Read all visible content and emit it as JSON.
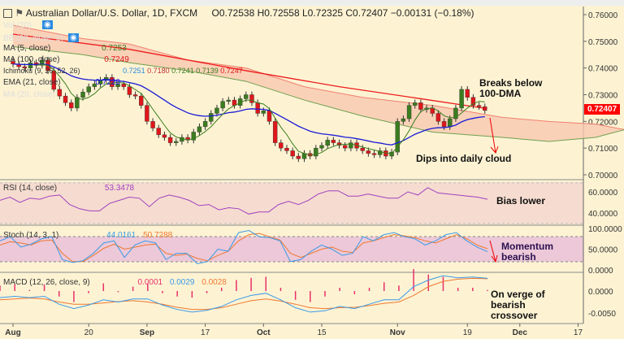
{
  "header": {
    "title": "Australian Dollar/U.S. Dollar, 1D, FXCM",
    "open": "O0.72538",
    "high": "H0.72558",
    "low": "L0.72325",
    "close": "C0.72407",
    "change": "−0.00131 (−0.18%)"
  },
  "legends": {
    "vol": "Vol (20)",
    "bb": "BB (20, close, 2)",
    "ma5": {
      "label": "MA (5, close)",
      "value": "0.7253"
    },
    "ma100": {
      "label": "MA (100, close)",
      "value": "0.7249"
    },
    "ichimoku": {
      "label": "Ichimoku (9, 26, 52, 26)",
      "values": [
        "0.7251",
        "0.7180",
        "0.7241",
        "0.7139",
        "0.7247"
      ]
    },
    "ema21": {
      "label": "EMA (21, close)",
      "value": "0.7220"
    },
    "ma20": "MA (20, close)",
    "rsi": {
      "label": "RSI (14, close)",
      "value": "53.3478"
    },
    "stoch": {
      "label": "Stoch (14, 3, 1)",
      "k": "44.0161",
      "d": "50.7288"
    },
    "macd": {
      "label": "MACD (12, 26, close, 9)",
      "hist": "0.0001",
      "macd": "0.0029",
      "signal": "0.0028"
    }
  },
  "annotations": {
    "breaks": "Breaks below 100-DMA",
    "dips": "Dips into daily cloud",
    "bias": "Bias lower",
    "momentum": "Momentum bearish",
    "verge": "On verge of bearish crossover"
  },
  "price_badge": "0.72407",
  "colors": {
    "up": "#3a7d1e",
    "down": "#e0161b",
    "ema": "#1a1ad8",
    "ma100": "#ee1c1c",
    "cloud": "#f8c8b0",
    "rsi": "#a040c0",
    "stochK": "#3a9ae8",
    "stochD": "#f07830",
    "macdHist": "#e8306a"
  },
  "chart_data": {
    "type": "candlestick",
    "price_axis": {
      "ticks": [
        "0.76000",
        "0.75000",
        "0.74000",
        "0.73000",
        "0.72000",
        "0.71000",
        "0.70000"
      ],
      "range": [
        0.7,
        0.76
      ]
    },
    "x_ticks": [
      {
        "label": "Aug",
        "i": 0
      },
      {
        "label": "20",
        "i": 13
      },
      {
        "label": "Sep",
        "i": 23
      },
      {
        "label": "17",
        "i": 33
      },
      {
        "label": "Oct",
        "i": 43
      },
      {
        "label": "15",
        "i": 53
      },
      {
        "label": "Nov",
        "i": 66
      },
      {
        "label": "19",
        "i": 78
      },
      {
        "label": "Dec",
        "i": 87
      },
      {
        "label": "17",
        "i": 97
      }
    ],
    "closes": [
      0.7415,
      0.7405,
      0.74,
      0.742,
      0.741,
      0.743,
      0.739,
      0.732,
      0.7295,
      0.727,
      0.725,
      0.729,
      0.731,
      0.733,
      0.734,
      0.7355,
      0.7365,
      0.733,
      0.734,
      0.733,
      0.73,
      0.7295,
      0.726,
      0.72,
      0.7175,
      0.715,
      0.714,
      0.712,
      0.7125,
      0.714,
      0.713,
      0.716,
      0.718,
      0.72,
      0.723,
      0.725,
      0.7275,
      0.728,
      0.726,
      0.7285,
      0.73,
      0.727,
      0.723,
      0.724,
      0.72,
      0.712,
      0.71,
      0.709,
      0.707,
      0.706,
      0.708,
      0.707,
      0.71,
      0.711,
      0.713,
      0.712,
      0.711,
      0.71,
      0.712,
      0.71,
      0.709,
      0.708,
      0.7075,
      0.709,
      0.707,
      0.7085,
      0.72,
      0.721,
      0.726,
      0.727,
      0.7245,
      0.725,
      0.723,
      0.72,
      0.718,
      0.721,
      0.725,
      0.732,
      0.729,
      0.726,
      0.7255,
      0.7241
    ],
    "ma100": [
      [
        0,
        0.7527
      ],
      [
        20,
        0.747
      ],
      [
        40,
        0.739
      ],
      [
        56,
        0.733
      ],
      [
        70,
        0.7285
      ],
      [
        81,
        0.7249
      ]
    ],
    "cloud_a": [
      [
        0,
        0.756
      ],
      [
        12,
        0.751
      ],
      [
        20,
        0.749
      ],
      [
        30,
        0.743
      ],
      [
        40,
        0.74
      ],
      [
        50,
        0.733
      ],
      [
        60,
        0.729
      ],
      [
        72,
        0.726
      ],
      [
        84,
        0.7215
      ],
      [
        92,
        0.72
      ],
      [
        100,
        0.719
      ],
      [
        106,
        0.7165
      ]
    ],
    "cloud_b": [
      [
        0,
        0.748
      ],
      [
        12,
        0.745
      ],
      [
        20,
        0.742
      ],
      [
        30,
        0.739
      ],
      [
        40,
        0.735
      ],
      [
        50,
        0.728
      ],
      [
        60,
        0.722
      ],
      [
        72,
        0.716
      ],
      [
        84,
        0.714
      ],
      [
        92,
        0.7125
      ],
      [
        100,
        0.714
      ],
      [
        106,
        0.7175
      ]
    ],
    "rsi": {
      "ticks": [
        "60.0000",
        "40.0000"
      ],
      "values": [
        52,
        55,
        50,
        54,
        53,
        56,
        57,
        48,
        44,
        42,
        42,
        49,
        52,
        55,
        54,
        46,
        54,
        57,
        55,
        52,
        47,
        48,
        43,
        45,
        44,
        39,
        41,
        41,
        48,
        51,
        48,
        52,
        58,
        61,
        61,
        56,
        56,
        58,
        56,
        54,
        54,
        60,
        57,
        64,
        59,
        58,
        57,
        56,
        55,
        53
      ]
    },
    "stoch": {
      "ticks": [
        "100.0000",
        "50.0000",
        "0.0000"
      ],
      "k": [
        70,
        80,
        55,
        62,
        75,
        80,
        25,
        18,
        22,
        40,
        65,
        70,
        30,
        60,
        70,
        65,
        25,
        40,
        40,
        15,
        20,
        50,
        45,
        90,
        95,
        80,
        78,
        70,
        20,
        25,
        45,
        60,
        50,
        35,
        40,
        80,
        70,
        85,
        90,
        80,
        75,
        60,
        70,
        85,
        90,
        70,
        55,
        44
      ],
      "d": [
        60,
        68,
        65,
        60,
        70,
        72,
        40,
        20,
        20,
        35,
        52,
        62,
        50,
        55,
        60,
        62,
        40,
        35,
        38,
        28,
        22,
        35,
        45,
        70,
        85,
        88,
        80,
        72,
        40,
        30,
        40,
        50,
        55,
        45,
        42,
        65,
        70,
        78,
        85,
        82,
        78,
        70,
        65,
        75,
        85,
        75,
        60,
        51
      ]
    },
    "macd": {
      "ticks": [
        "0.0000",
        "-0.0050"
      ],
      "macd": [
        -0.0015,
        -0.0012,
        -0.0015,
        -0.0012,
        -0.003,
        -0.004,
        -0.0032,
        -0.002,
        -0.0025,
        -0.0018,
        -0.0018,
        -0.0032,
        -0.0042,
        -0.0048,
        -0.0044,
        -0.0035,
        -0.002,
        -0.001,
        -0.0005,
        -0.002,
        -0.0038,
        -0.0048,
        -0.0045,
        -0.0035,
        -0.004,
        -0.003,
        -0.002,
        -0.002,
        0.001,
        0.0025,
        0.0035,
        0.003,
        0.0032,
        0.0029
      ],
      "signal": [
        -0.002,
        -0.0018,
        -0.0016,
        -0.0018,
        -0.0025,
        -0.003,
        -0.003,
        -0.0027,
        -0.0024,
        -0.0022,
        -0.0025,
        -0.003,
        -0.0037,
        -0.0042,
        -0.0042,
        -0.0038,
        -0.003,
        -0.0022,
        -0.0018,
        -0.0023,
        -0.003,
        -0.0038,
        -0.004,
        -0.0038,
        -0.0037,
        -0.0033,
        -0.0028,
        -0.0025,
        -0.001,
        0.001,
        0.0022,
        0.0027,
        0.0029,
        0.0028
      ]
    }
  }
}
